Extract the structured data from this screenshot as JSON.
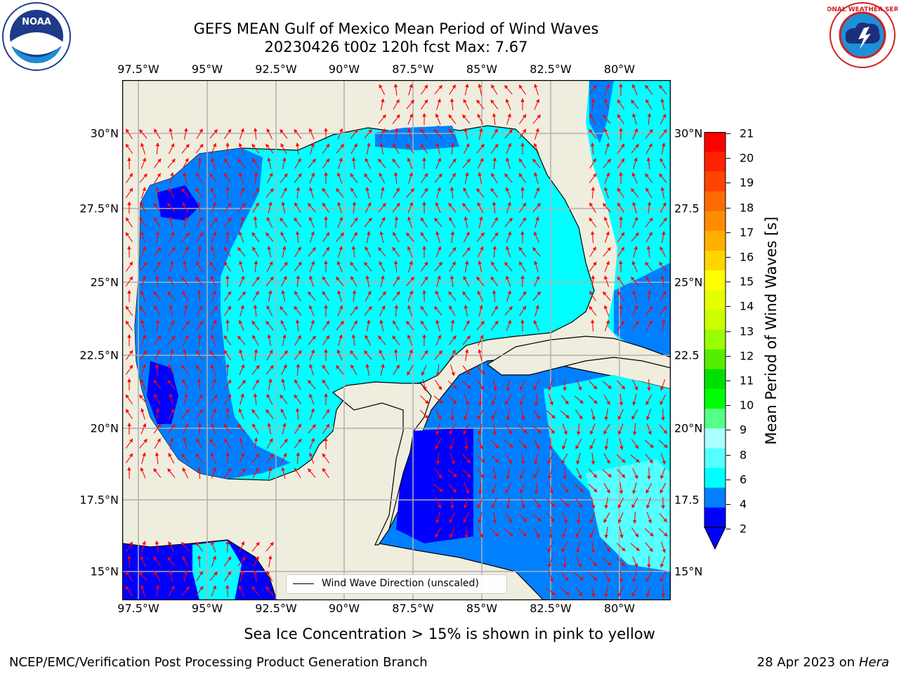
{
  "header": {
    "title_line1": "GEFS MEAN Gulf of Mexico Mean Period of Wind Waves",
    "title_line2": "20230426 t00z 120h fcst   Max: 7.67"
  },
  "logos": {
    "left": "NOAA",
    "right": "NATIONAL WEATHER SERVICE"
  },
  "map": {
    "lon_labels": [
      "97.5°W",
      "95°W",
      "92.5°W",
      "90°W",
      "87.5°W",
      "85°W",
      "82.5°W",
      "80°W"
    ],
    "lat_labels_left": [
      "30°N",
      "27.5°N",
      "25°N",
      "22.5°N",
      "20°N",
      "17.5°N",
      "15°N"
    ],
    "lat_labels_right": [
      "30°N",
      "27.5",
      "25°N",
      "22.5",
      "20°N",
      "17.5",
      "15°N"
    ],
    "legend_label": "Wind Wave Direction (unscaled)",
    "colors": {
      "land": "#efedde",
      "coast": "#000000",
      "grid": "#b0b0b0",
      "arrow": "#ff0000"
    }
  },
  "colorbar": {
    "label": "Mean Period of Wind Waves [s]",
    "ticks": [
      "21",
      "20",
      "19",
      "18",
      "17",
      "16",
      "15",
      "14",
      "13",
      "12",
      "11",
      "10",
      "9",
      "8",
      "6",
      "4",
      "2"
    ],
    "colors": [
      "#ff0000",
      "#ff2200",
      "#ff4400",
      "#ff6a00",
      "#ff8c00",
      "#ffb000",
      "#ffd500",
      "#ffff00",
      "#e6ff00",
      "#ccff00",
      "#99ff00",
      "#55ee00",
      "#00e000",
      "#00ff00",
      "#55ff88",
      "#aaffff",
      "#55ffff",
      "#00ffff",
      "#0080ff",
      "#0000ff"
    ]
  },
  "footer": {
    "sea_ice_note": "Sea Ice Concentration > 15% is shown in pink to yellow",
    "credit": "NCEP/EMC/Verification Post Processing Product Generation Branch",
    "date": "28 Apr 2023 on",
    "machine": "Hera"
  }
}
